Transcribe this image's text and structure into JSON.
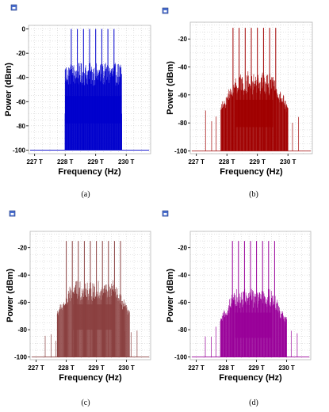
{
  "chart_data": [
    {
      "type": "line",
      "caption": "(a)",
      "xlabel": "Frequency (Hz)",
      "ylabel": "Power (dBm)",
      "x_ticks": [
        "227 T",
        "228 T",
        "229 T",
        "230 T"
      ],
      "x_tick_values": [
        227,
        228,
        229,
        230
      ],
      "y_ticks": [
        "0",
        "-20",
        "-40",
        "-60",
        "-80",
        "-100"
      ],
      "y_tick_values": [
        0,
        -20,
        -40,
        -60,
        -80,
        -100
      ],
      "xlim": [
        226.8,
        230.8
      ],
      "ylim": [
        -103,
        3
      ],
      "grid": true,
      "color": "#0000cc",
      "noise_floor_dbm": -100,
      "band_hz_T": [
        228.0,
        229.85
      ],
      "carrier_peaks_T": [
        228.2,
        228.4,
        228.6,
        228.8,
        229.0,
        229.2,
        229.4,
        229.6
      ],
      "carrier_peak_dbm": 0,
      "sideband_upper_dbm": -28,
      "sideband_lower_dbm": -70,
      "outer_spur_dbm": null
    },
    {
      "type": "line",
      "caption": "(b)",
      "xlabel": "Frequency (Hz)",
      "ylabel": "Power (dBm)",
      "x_ticks": [
        "227 T",
        "228 T",
        "229 T",
        "230 T"
      ],
      "x_tick_values": [
        227,
        228,
        229,
        230
      ],
      "y_ticks": [
        "-20",
        "-40",
        "-60",
        "-80",
        "-100"
      ],
      "y_tick_values": [
        -20,
        -40,
        -60,
        -80,
        -100
      ],
      "xlim": [
        226.8,
        230.8
      ],
      "ylim": [
        -102,
        -8
      ],
      "grid": true,
      "color": "#a00000",
      "noise_floor_dbm": -100,
      "band_hz_T": [
        227.8,
        230.0
      ],
      "carrier_peaks_T": [
        228.2,
        228.4,
        228.6,
        228.8,
        229.0,
        229.2,
        229.4,
        229.6
      ],
      "carrier_peak_dbm": -12,
      "sideband_upper_dbm": -42,
      "sideband_lower_dbm": -75,
      "outer_spur_dbm": -75
    },
    {
      "type": "line",
      "caption": "(c)",
      "xlabel": "Frequency (Hz)",
      "ylabel": "Power (dBm)",
      "x_ticks": [
        "227 T",
        "228 T",
        "229 T",
        "230 T"
      ],
      "x_tick_values": [
        227,
        228,
        229,
        230
      ],
      "y_ticks": [
        "-20",
        "-40",
        "-60",
        "-80",
        "-100"
      ],
      "y_tick_values": [
        -20,
        -40,
        -60,
        -80,
        -100
      ],
      "xlim": [
        226.8,
        230.8
      ],
      "ylim": [
        -102,
        -8
      ],
      "grid": true,
      "color": "#8b4040",
      "noise_floor_dbm": -100,
      "band_hz_T": [
        227.7,
        230.1
      ],
      "carrier_peaks_T": [
        228.0,
        228.2,
        228.4,
        228.6,
        228.8,
        229.0,
        229.2,
        229.4,
        229.6,
        229.8
      ],
      "carrier_peak_dbm": -15,
      "sideband_upper_dbm": -42,
      "sideband_lower_dbm": -72,
      "outer_spur_dbm": -85
    },
    {
      "type": "line",
      "caption": "(d)",
      "xlabel": "Frequency (Hz)",
      "ylabel": "Power (dBm)",
      "x_ticks": [
        "227 T",
        "228 T",
        "229 T",
        "230 T"
      ],
      "x_tick_values": [
        227,
        228,
        229,
        230
      ],
      "y_ticks": [
        "-20",
        "-40",
        "-60",
        "-80",
        "-100"
      ],
      "y_tick_values": [
        -20,
        -40,
        -60,
        -80,
        -100
      ],
      "xlim": [
        226.8,
        230.8
      ],
      "ylim": [
        -102,
        -8
      ],
      "grid": true,
      "color": "#990099",
      "noise_floor_dbm": -100,
      "band_hz_T": [
        227.8,
        230.0
      ],
      "carrier_peaks_T": [
        228.2,
        228.4,
        228.6,
        228.8,
        229.0,
        229.2,
        229.4,
        229.6
      ],
      "carrier_peak_dbm": -15,
      "sideband_upper_dbm": -48,
      "sideband_lower_dbm": -78,
      "outer_spur_dbm": -82
    }
  ]
}
